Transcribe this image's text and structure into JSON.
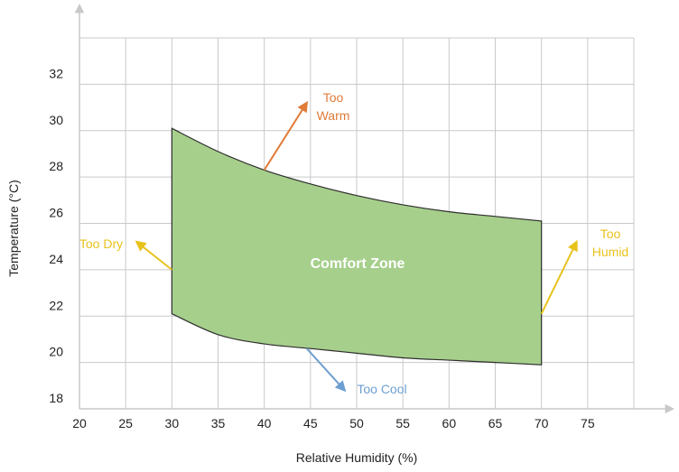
{
  "chart_data": {
    "type": "area",
    "xlabel": "Relative Humidity  (%)",
    "ylabel": "Temperature (°C)",
    "xlim": [
      20,
      80
    ],
    "ylim": [
      18,
      34
    ],
    "x_ticks": [
      "20",
      "25",
      "30",
      "35",
      "40",
      "45",
      "50",
      "55",
      "60",
      "65",
      "70",
      "75"
    ],
    "y_ticks": [
      "18",
      "20",
      "22",
      "24",
      "26",
      "28",
      "30",
      "32"
    ],
    "grid": true,
    "region": {
      "name": "Comfort Zone",
      "color": "#a6cf8c",
      "upper_boundary": {
        "x": [
          30,
          35,
          40,
          45,
          50,
          55,
          60,
          65,
          70
        ],
        "y": [
          30.1,
          29.1,
          28.3,
          27.7,
          27.2,
          26.8,
          26.5,
          26.3,
          26.1
        ]
      },
      "lower_boundary": {
        "x": [
          30,
          35,
          40,
          45,
          50,
          55,
          60,
          65,
          70
        ],
        "y": [
          22.1,
          21.2,
          20.8,
          20.6,
          20.4,
          20.2,
          20.1,
          20.0,
          19.9
        ]
      }
    },
    "annotations": [
      {
        "label_lines": [
          "Too",
          "Warm"
        ],
        "color": "#e07b39",
        "from": [
          40,
          28.3
        ],
        "to": [
          44.6,
          31.2
        ]
      },
      {
        "label_lines": [
          "Too Dry"
        ],
        "color": "#e8c21c",
        "from": [
          30,
          24.0
        ],
        "to": [
          26.2,
          25.2
        ]
      },
      {
        "label_lines": [
          "Too",
          "Humid"
        ],
        "color": "#e8c21c",
        "from": [
          70,
          22.1
        ],
        "to": [
          73.8,
          25.2
        ]
      },
      {
        "label_lines": [
          "Too Cool"
        ],
        "color": "#6e9fd1",
        "from": [
          44.6,
          20.6
        ],
        "to": [
          48.7,
          18.8
        ]
      }
    ],
    "colors": {
      "grid": "#c9c9c9",
      "axis": "#c9c9c9",
      "outline": "#2e2e2e"
    }
  }
}
